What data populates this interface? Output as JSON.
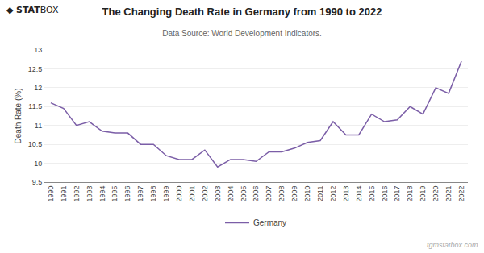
{
  "chart_data": {
    "type": "line",
    "title": "The Changing Death Rate in Germany from 1990 to 2022",
    "subtitle": "Data Source: World Development Indicators.",
    "y_label": "Death Rate (%)",
    "x": [
      1990,
      1991,
      1992,
      1993,
      1994,
      1995,
      1996,
      1997,
      1998,
      1999,
      2000,
      2001,
      2002,
      2003,
      2004,
      2005,
      2006,
      2007,
      2008,
      2009,
      2010,
      2011,
      2012,
      2013,
      2014,
      2015,
      2016,
      2017,
      2018,
      2019,
      2020,
      2021,
      2022
    ],
    "series": [
      {
        "name": "Germany",
        "color": "#7b5ea7",
        "values": [
          11.6,
          11.45,
          11.0,
          11.1,
          10.85,
          10.8,
          10.8,
          10.5,
          10.5,
          10.2,
          10.1,
          10.1,
          10.35,
          9.9,
          10.1,
          10.1,
          10.05,
          10.3,
          10.3,
          10.4,
          10.55,
          10.6,
          11.1,
          10.75,
          10.75,
          11.3,
          11.1,
          11.15,
          11.5,
          11.3,
          12.0,
          11.85,
          12.7
        ]
      }
    ],
    "xlim": [
      1989.5,
      2022.5
    ],
    "xticks": [
      1990,
      1991,
      1992,
      1993,
      1994,
      1995,
      1996,
      1997,
      1998,
      1999,
      2000,
      2001,
      2002,
      2003,
      2004,
      2005,
      2006,
      2007,
      2008,
      2009,
      2010,
      2011,
      2012,
      2013,
      2014,
      2015,
      2016,
      2017,
      2018,
      2019,
      2020,
      2021,
      2022
    ],
    "ylim": [
      9.5,
      13
    ],
    "yticks": [
      9.5,
      10,
      10.5,
      11,
      11.5,
      12,
      12.5,
      13
    ],
    "grid": "y",
    "legend": "bottom",
    "annotations": [
      "◆",
      "STAT",
      "BOX",
      "tgmstatbox.com"
    ]
  }
}
